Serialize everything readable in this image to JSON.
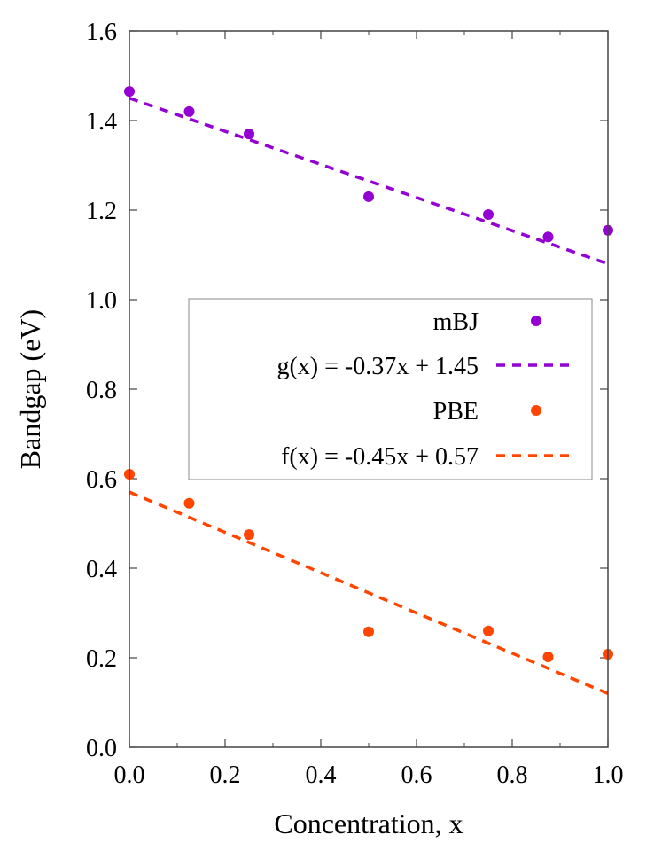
{
  "chart_data": {
    "type": "scatter",
    "title": "",
    "xlabel": "Concentration, x",
    "ylabel": "Bandgap (eV)",
    "xlim": [
      0.0,
      1.0
    ],
    "ylim": [
      0.0,
      1.6
    ],
    "xticks": [
      "0.0",
      "0.2",
      "0.4",
      "0.6",
      "0.8",
      "1.0"
    ],
    "xtick_values": [
      0.0,
      0.2,
      0.4,
      0.6,
      0.8,
      1.0
    ],
    "xminor_step": 0.1,
    "yticks": [
      "0.0",
      "0.2",
      "0.4",
      "0.6",
      "0.8",
      "1.0",
      "1.2",
      "1.4",
      "1.6"
    ],
    "ytick_values": [
      0.0,
      0.2,
      0.4,
      0.6,
      0.8,
      1.0,
      1.2,
      1.4,
      1.6
    ],
    "grid": false,
    "legend_placement": "center-right",
    "series": [
      {
        "name": "mBJ",
        "kind": "points",
        "color": "#9400D3",
        "x": [
          0.0,
          0.125,
          0.25,
          0.5,
          0.75,
          0.875,
          1.0
        ],
        "y": [
          1.465,
          1.42,
          1.37,
          1.23,
          1.19,
          1.14,
          1.155
        ]
      },
      {
        "name": "g(x) = -0.37x + 1.45",
        "kind": "dashed-line",
        "color": "#9400D3",
        "slope": -0.37,
        "intercept": 1.45
      },
      {
        "name": "PBE",
        "kind": "points",
        "color": "#FF4500",
        "x": [
          0.0,
          0.125,
          0.25,
          0.5,
          0.75,
          0.875,
          1.0
        ],
        "y": [
          0.61,
          0.545,
          0.475,
          0.258,
          0.26,
          0.202,
          0.208
        ]
      },
      {
        "name": "f(x) = -0.45x + 0.57",
        "kind": "dashed-line",
        "color": "#FF4500",
        "slope": -0.45,
        "intercept": 0.57
      }
    ]
  }
}
